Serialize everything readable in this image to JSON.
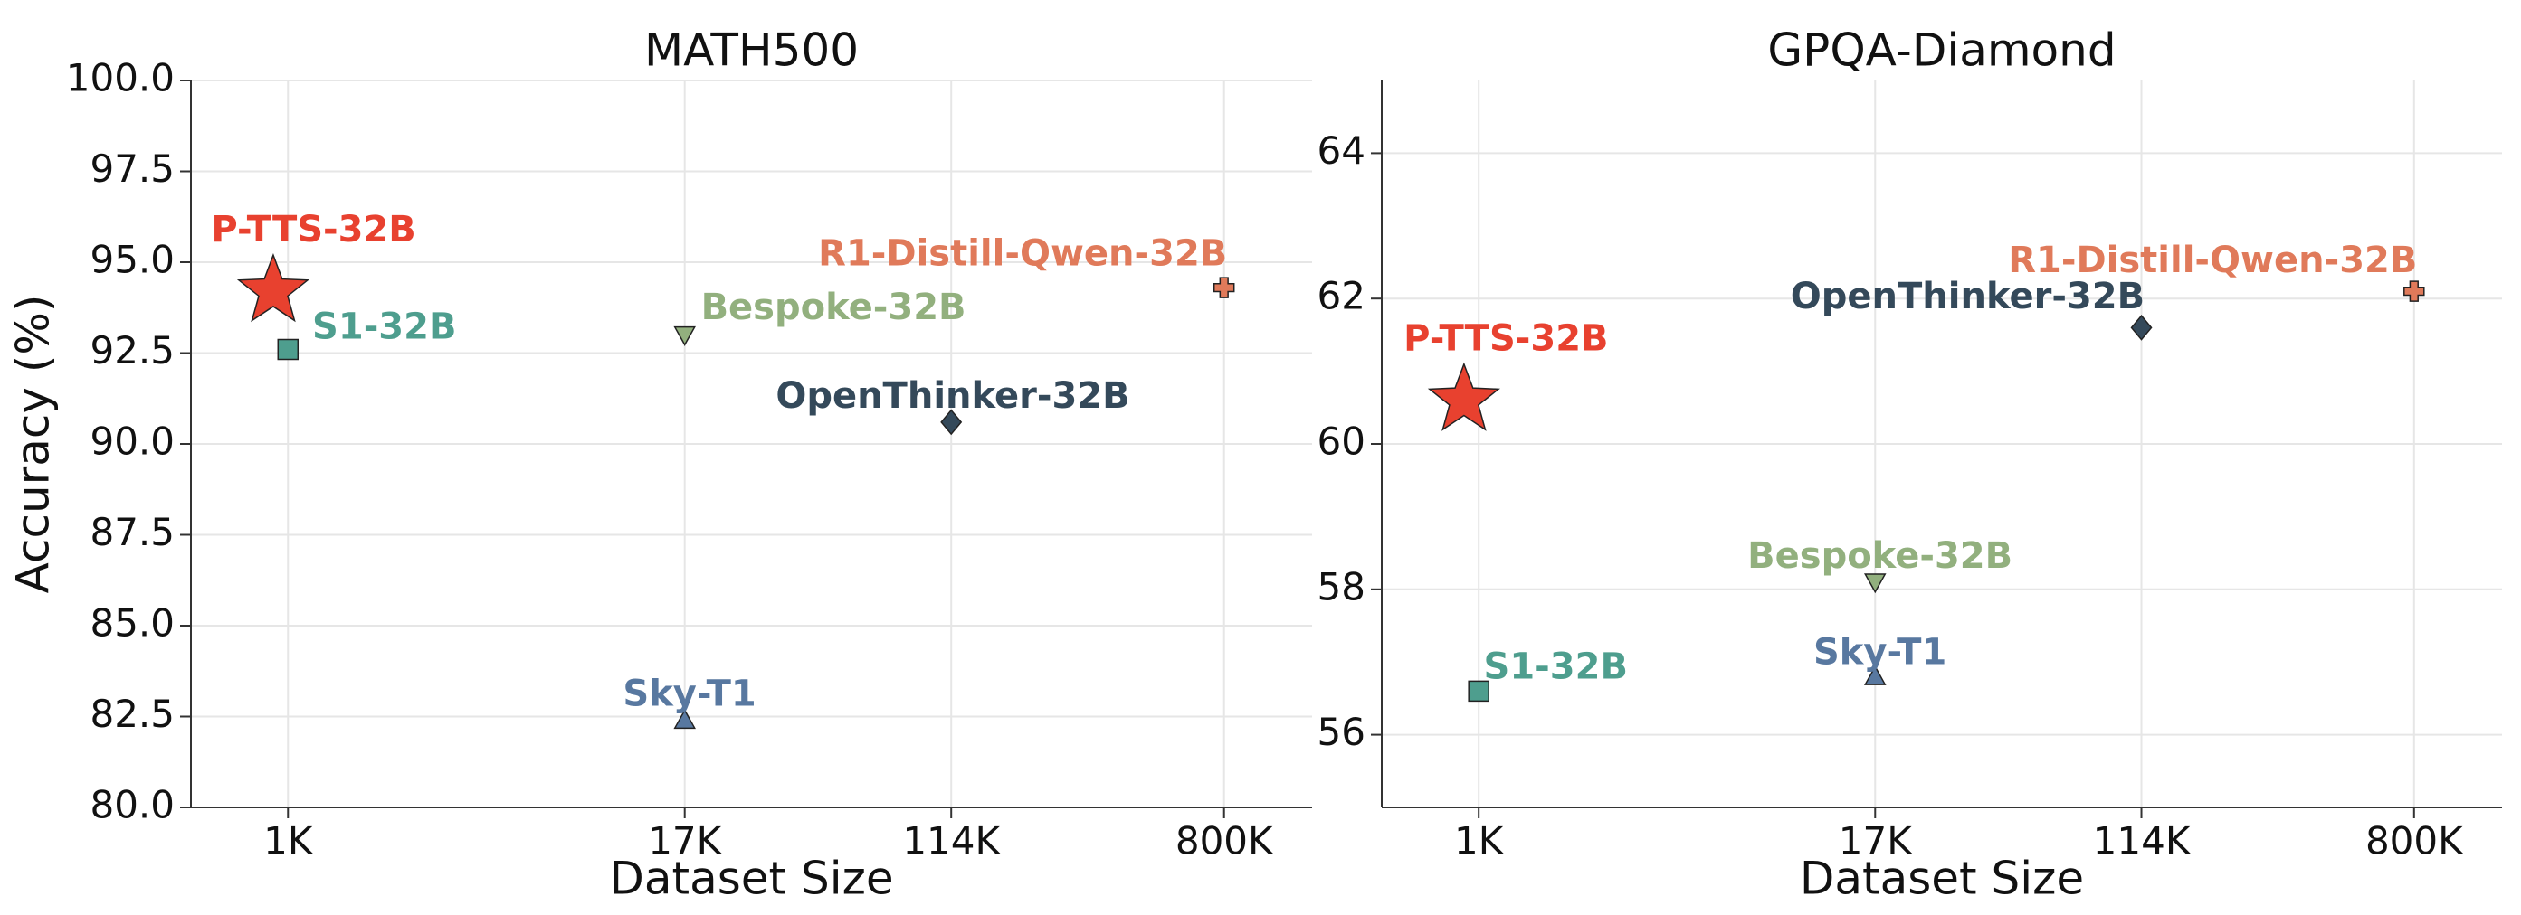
{
  "chart_data": [
    {
      "type": "scatter",
      "title": "MATH500",
      "x_label": "Dataset Size",
      "y_label": "Accuracy (%)",
      "xscale": "log",
      "xlim": [
        500,
        1500000
      ],
      "xticks": [
        {
          "value": 1000,
          "label": "1K"
        },
        {
          "value": 17000,
          "label": "17K"
        },
        {
          "value": 114000,
          "label": "114K"
        },
        {
          "value": 800000,
          "label": "800K"
        }
      ],
      "ylim": [
        80,
        100
      ],
      "yticks": [
        {
          "value": 80,
          "label": "80.0"
        },
        82.5,
        {
          "value": 85,
          "label": "85.0"
        },
        87.5,
        {
          "value": 90,
          "label": "90.0"
        },
        92.5,
        {
          "value": 95,
          "label": "95.0"
        },
        97.5,
        {
          "value": 100,
          "label": "100.0"
        }
      ],
      "grid": true,
      "series": [
        {
          "name": "P-TTS-32B",
          "color": "#e8412f",
          "marker": "star",
          "x": [
            900
          ],
          "values": [
            94.2
          ]
        },
        {
          "name": "S1-32B",
          "color": "#4e9e8e",
          "marker": "square",
          "x": [
            1000
          ],
          "values": [
            92.6
          ]
        },
        {
          "name": "Bespoke-32B",
          "color": "#92b07e",
          "marker": "triangle-down",
          "x": [
            17000
          ],
          "values": [
            93.0
          ]
        },
        {
          "name": "Sky-T1",
          "color": "#5878a0",
          "marker": "triangle-up",
          "x": [
            17000
          ],
          "values": [
            82.4
          ]
        },
        {
          "name": "OpenThinker-32B",
          "color": "#34495a",
          "marker": "diamond",
          "x": [
            114000
          ],
          "values": [
            90.6
          ]
        },
        {
          "name": "R1-Distill-Qwen-32B",
          "color": "#e07a5a",
          "marker": "plus",
          "x": [
            800000
          ],
          "values": [
            94.3
          ]
        }
      ]
    },
    {
      "type": "scatter",
      "title": "GPQA-Diamond",
      "x_label": "Dataset Size",
      "xscale": "log",
      "xlim": [
        500,
        1500000
      ],
      "xticks": [
        {
          "value": 1000,
          "label": "1K"
        },
        {
          "value": 17000,
          "label": "17K"
        },
        {
          "value": 114000,
          "label": "114K"
        },
        {
          "value": 800000,
          "label": "800K"
        }
      ],
      "ylim": [
        55,
        65
      ],
      "yticks": [
        56,
        58,
        60,
        62,
        64
      ],
      "grid": true,
      "series": [
        {
          "name": "P-TTS-32B",
          "color": "#e8412f",
          "marker": "star",
          "x": [
            900
          ],
          "values": [
            60.6
          ]
        },
        {
          "name": "S1-32B",
          "color": "#4e9e8e",
          "marker": "square",
          "x": [
            1000
          ],
          "values": [
            56.6
          ]
        },
        {
          "name": "Bespoke-32B",
          "color": "#92b07e",
          "marker": "triangle-down",
          "x": [
            17000
          ],
          "values": [
            58.1
          ]
        },
        {
          "name": "Sky-T1",
          "color": "#5878a0",
          "marker": "triangle-up",
          "x": [
            17000
          ],
          "values": [
            56.8
          ]
        },
        {
          "name": "OpenThinker-32B",
          "color": "#34495a",
          "marker": "diamond",
          "x": [
            114000
          ],
          "values": [
            61.6
          ]
        },
        {
          "name": "R1-Distill-Qwen-32B",
          "color": "#e07a5a",
          "marker": "plus",
          "x": [
            800000
          ],
          "values": [
            62.1
          ]
        }
      ]
    }
  ]
}
